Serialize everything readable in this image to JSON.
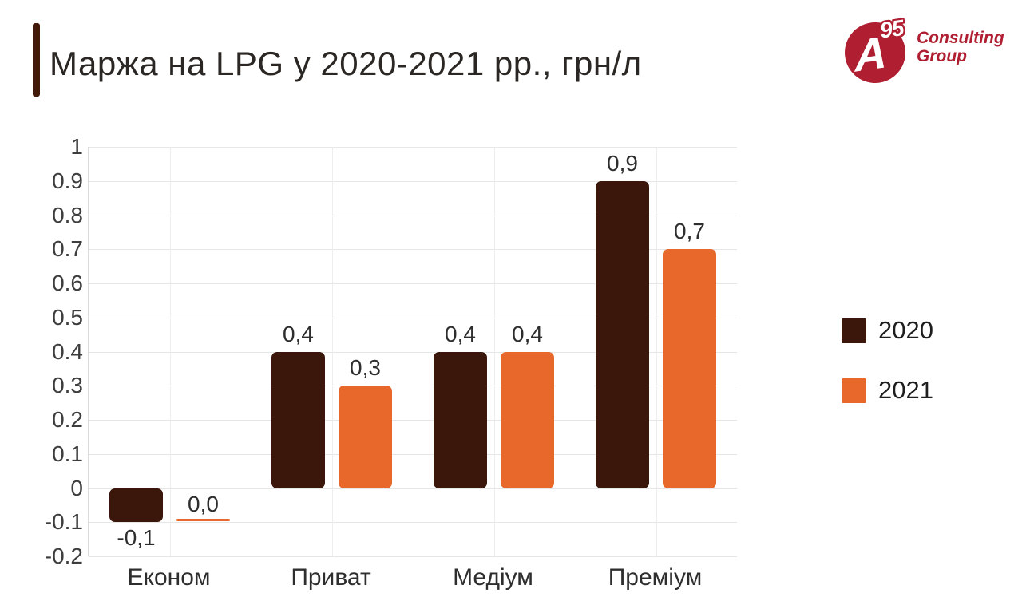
{
  "logo": {
    "letter": "A",
    "superscript": "95",
    "line1": "Consulting",
    "line2": "Group",
    "color": "#b01e32"
  },
  "header": {
    "accent_color": "#431a0a"
  },
  "chart_data": {
    "type": "bar",
    "title": "Маржа на LPG у 2020-2021 рр., грн/л",
    "categories": [
      "Економ",
      "Приват",
      "Медіум",
      "Преміум"
    ],
    "series": [
      {
        "name": "2020",
        "color": "#3a170a",
        "values": [
          -0.1,
          0.4,
          0.4,
          0.9
        ],
        "data_labels": [
          "-0,1",
          "0,4",
          "0,4",
          "0,9"
        ]
      },
      {
        "name": "2021",
        "color": "#e8682c",
        "values": [
          0.0,
          0.3,
          0.4,
          0.7
        ],
        "data_labels": [
          "0,0",
          "0,3",
          "0,4",
          "0,7"
        ]
      }
    ],
    "ylabel": "",
    "xlabel": "",
    "ylim": [
      -0.2,
      1.0
    ],
    "ytick_step": 0.1,
    "ytick_labels": [
      "1",
      "0.9",
      "0.8",
      "0.7",
      "0.6",
      "0.5",
      "0.4",
      "0.3",
      "0.2",
      "0.1",
      "0",
      "-0.1",
      "-0.2"
    ],
    "grid": true,
    "vertical_gridlines_at_category_centers": true,
    "zero_value_bar_rendered_at": -0.1,
    "legend_position": "right",
    "legend_items": [
      "2020",
      "2021"
    ]
  }
}
